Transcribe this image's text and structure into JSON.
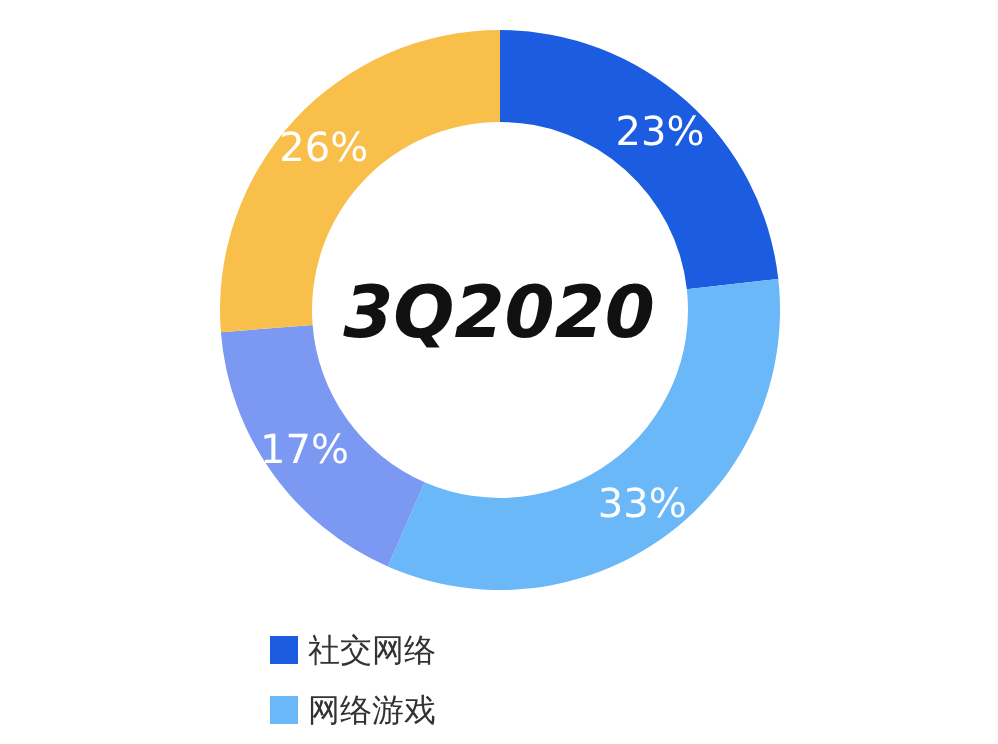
{
  "chart_data": {
    "type": "donut",
    "title": "3Q2020",
    "categories": [
      "社交网络",
      "网络游戏",
      null,
      null
    ],
    "values": [
      23,
      33,
      17,
      26
    ],
    "value_labels": [
      "23%",
      "33%",
      "17%",
      "26%"
    ],
    "colors": [
      "#1b5ce0",
      "#6ab8f7",
      "#7b98f2",
      "#f9bf4b"
    ],
    "legend": "bottom"
  }
}
